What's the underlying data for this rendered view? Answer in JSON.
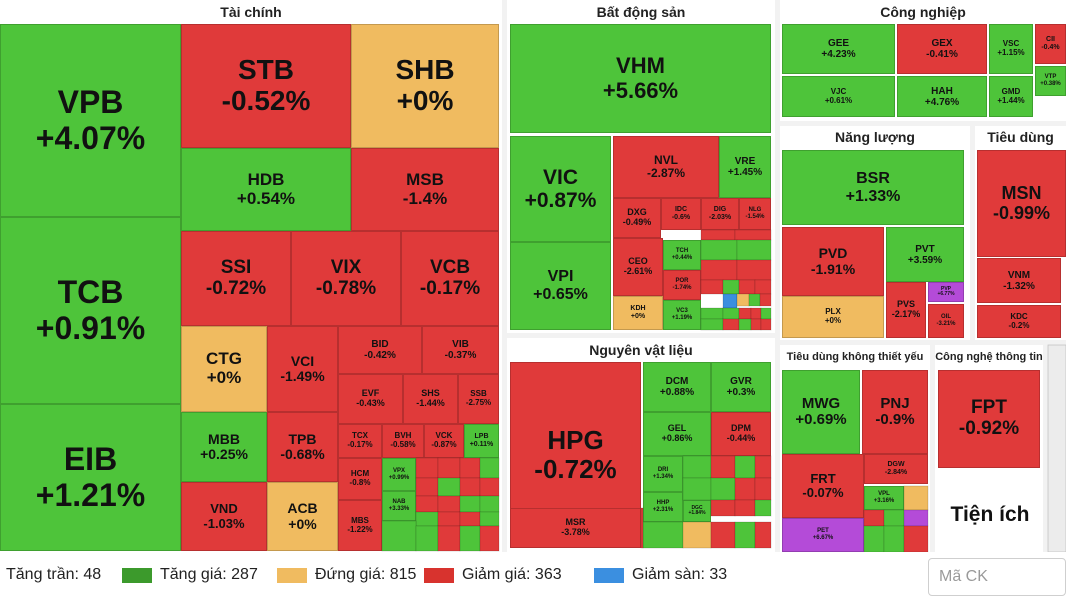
{
  "colors": {
    "up": "#4ec43a",
    "down": "#e03a3a",
    "ref": "#f0bb60",
    "floor": "#3b8fe0",
    "ceiling": "#b44bd8",
    "neutral": "#ffffff"
  },
  "chart_data": {
    "type": "treemap",
    "sectors": [
      {
        "key": "tai_chinh",
        "name": "Tài chính"
      },
      {
        "key": "bds",
        "name": "Bất động sản"
      },
      {
        "key": "cong_nghiep",
        "name": "Công nghiệp"
      },
      {
        "key": "nang_luong",
        "name": "Năng lượng"
      },
      {
        "key": "tieu_dung",
        "name": "Tiêu dùng"
      },
      {
        "key": "nvl",
        "name": "Nguyên vật liệu"
      },
      {
        "key": "tdktty",
        "name": "Tiêu dùng không thiết yếu"
      },
      {
        "key": "cntt",
        "name": "Công nghệ thông tin"
      }
    ],
    "tiles": [
      {
        "sym": "VPB",
        "chg": "+4.07%",
        "change": 4.07,
        "sector": "tai_chinh"
      },
      {
        "sym": "TCB",
        "chg": "+0.91%",
        "change": 0.91,
        "sector": "tai_chinh"
      },
      {
        "sym": "EIB",
        "chg": "+1.21%",
        "change": 1.21,
        "sector": "tai_chinh"
      },
      {
        "sym": "STB",
        "chg": "-0.52%",
        "change": -0.52,
        "sector": "tai_chinh"
      },
      {
        "sym": "SHB",
        "chg": "+0%",
        "change": 0,
        "sector": "tai_chinh"
      },
      {
        "sym": "HDB",
        "chg": "+0.54%",
        "change": 0.54,
        "sector": "tai_chinh"
      },
      {
        "sym": "MSB",
        "chg": "-1.4%",
        "change": -1.4,
        "sector": "tai_chinh"
      },
      {
        "sym": "SSI",
        "chg": "-0.72%",
        "change": -0.72,
        "sector": "tai_chinh"
      },
      {
        "sym": "VIX",
        "chg": "-0.78%",
        "change": -0.78,
        "sector": "tai_chinh"
      },
      {
        "sym": "VCB",
        "chg": "-0.17%",
        "change": -0.17,
        "sector": "tai_chinh"
      },
      {
        "sym": "CTG",
        "chg": "+0%",
        "change": 0,
        "sector": "tai_chinh"
      },
      {
        "sym": "VCI",
        "chg": "-1.49%",
        "change": -1.49,
        "sector": "tai_chinh"
      },
      {
        "sym": "BID",
        "chg": "-0.42%",
        "change": -0.42,
        "sector": "tai_chinh"
      },
      {
        "sym": "VIB",
        "chg": "-0.37%",
        "change": -0.37,
        "sector": "tai_chinh"
      },
      {
        "sym": "EVF",
        "chg": "-0.43%",
        "change": -0.43,
        "sector": "tai_chinh"
      },
      {
        "sym": "SHS",
        "chg": "-1.44%",
        "change": -1.44,
        "sector": "tai_chinh"
      },
      {
        "sym": "SSB",
        "chg": "-2.75%",
        "change": -2.75,
        "sector": "tai_chinh"
      },
      {
        "sym": "MBB",
        "chg": "+0.25%",
        "change": 0.25,
        "sector": "tai_chinh"
      },
      {
        "sym": "TPB",
        "chg": "-0.68%",
        "change": -0.68,
        "sector": "tai_chinh"
      },
      {
        "sym": "TCX",
        "chg": "-0.17%",
        "change": -0.17,
        "sector": "tai_chinh"
      },
      {
        "sym": "BVH",
        "chg": "-0.58%",
        "change": -0.58,
        "sector": "tai_chinh"
      },
      {
        "sym": "VCK",
        "chg": "-0.87%",
        "change": -0.87,
        "sector": "tai_chinh"
      },
      {
        "sym": "LPB",
        "chg": "+0.11%",
        "change": 0.11,
        "sector": "tai_chinh"
      },
      {
        "sym": "HCM",
        "chg": "-0.8%",
        "change": -0.8,
        "sector": "tai_chinh"
      },
      {
        "sym": "VPX",
        "chg": "+0.99%",
        "change": 0.99,
        "sector": "tai_chinh"
      },
      {
        "sym": "NAB",
        "chg": "+3.33%",
        "change": 3.33,
        "sector": "tai_chinh"
      },
      {
        "sym": "VND",
        "chg": "-1.03%",
        "change": -1.03,
        "sector": "tai_chinh"
      },
      {
        "sym": "ACB",
        "chg": "+0%",
        "change": 0,
        "sector": "tai_chinh"
      },
      {
        "sym": "MBS",
        "chg": "-1.22%",
        "change": -1.22,
        "sector": "tai_chinh"
      },
      {
        "sym": "VHM",
        "chg": "+5.66%",
        "change": 5.66,
        "sector": "bds"
      },
      {
        "sym": "VIC",
        "chg": "+0.87%",
        "change": 0.87,
        "sector": "bds"
      },
      {
        "sym": "NVL",
        "chg": "-2.87%",
        "change": -2.87,
        "sector": "bds"
      },
      {
        "sym": "VRE",
        "chg": "+1.45%",
        "change": 1.45,
        "sector": "bds"
      },
      {
        "sym": "DXG",
        "chg": "-0.49%",
        "change": -0.49,
        "sector": "bds"
      },
      {
        "sym": "IDC",
        "chg": "-0.6%",
        "change": -0.6,
        "sector": "bds"
      },
      {
        "sym": "DIG",
        "chg": "-2.03%",
        "change": -2.03,
        "sector": "bds"
      },
      {
        "sym": "NLG",
        "chg": "-1.54%",
        "change": -1.54,
        "sector": "bds"
      },
      {
        "sym": "VPI",
        "chg": "+0.65%",
        "change": 0.65,
        "sector": "bds"
      },
      {
        "sym": "CEO",
        "chg": "-2.61%",
        "change": -2.61,
        "sector": "bds"
      },
      {
        "sym": "TCH",
        "chg": "+0.44%",
        "change": 0.44,
        "sector": "bds"
      },
      {
        "sym": "POR",
        "chg": "-1.74%",
        "change": -1.74,
        "sector": "bds"
      },
      {
        "sym": "KDH",
        "chg": "+0%",
        "change": 0,
        "sector": "bds"
      },
      {
        "sym": "VC3",
        "chg": "+1.19%",
        "change": 1.19,
        "sector": "bds"
      },
      {
        "sym": "GEE",
        "chg": "+4.23%",
        "change": 4.23,
        "sector": "cong_nghiep"
      },
      {
        "sym": "GEX",
        "chg": "-0.41%",
        "change": -0.41,
        "sector": "cong_nghiep"
      },
      {
        "sym": "VSC",
        "chg": "+1.15%",
        "change": 1.15,
        "sector": "cong_nghiep"
      },
      {
        "sym": "CII",
        "chg": "-0.4%",
        "change": -0.4,
        "sector": "cong_nghiep"
      },
      {
        "sym": "VJC",
        "chg": "+0.61%",
        "change": 0.61,
        "sector": "cong_nghiep"
      },
      {
        "sym": "HAH",
        "chg": "+4.76%",
        "change": 4.76,
        "sector": "cong_nghiep"
      },
      {
        "sym": "GMD",
        "chg": "+1.44%",
        "change": 1.44,
        "sector": "cong_nghiep"
      },
      {
        "sym": "VTP",
        "chg": "+0.38%",
        "change": 0.38,
        "sector": "cong_nghiep"
      },
      {
        "sym": "BSR",
        "chg": "+1.33%",
        "change": 1.33,
        "sector": "nang_luong"
      },
      {
        "sym": "PVD",
        "chg": "-1.91%",
        "change": -1.91,
        "sector": "nang_luong"
      },
      {
        "sym": "PVT",
        "chg": "+3.59%",
        "change": 3.59,
        "sector": "nang_luong"
      },
      {
        "sym": "PVP",
        "chg": "+6.77%",
        "change": 6.77,
        "sector": "nang_luong"
      },
      {
        "sym": "PLX",
        "chg": "+0%",
        "change": 0,
        "sector": "nang_luong"
      },
      {
        "sym": "PVS",
        "chg": "-2.17%",
        "change": -2.17,
        "sector": "nang_luong"
      },
      {
        "sym": "OIL",
        "chg": "-3.21%",
        "change": -3.21,
        "sector": "nang_luong"
      },
      {
        "sym": "MSN",
        "chg": "-0.99%",
        "change": -0.99,
        "sector": "tieu_dung"
      },
      {
        "sym": "VNM",
        "chg": "-1.32%",
        "change": -1.32,
        "sector": "tieu_dung"
      },
      {
        "sym": "KDC",
        "chg": "-0.2%",
        "change": -0.2,
        "sector": "tieu_dung"
      },
      {
        "sym": "HPG",
        "chg": "-0.72%",
        "change": -0.72,
        "sector": "nvl"
      },
      {
        "sym": "DCM",
        "chg": "+0.88%",
        "change": 0.88,
        "sector": "nvl"
      },
      {
        "sym": "GVR",
        "chg": "+0.3%",
        "change": 0.3,
        "sector": "nvl"
      },
      {
        "sym": "GEL",
        "chg": "+0.86%",
        "change": 0.86,
        "sector": "nvl"
      },
      {
        "sym": "DPM",
        "chg": "-0.44%",
        "change": -0.44,
        "sector": "nvl"
      },
      {
        "sym": "DRI",
        "chg": "+1.34%",
        "change": 1.34,
        "sector": "nvl"
      },
      {
        "sym": "HHP",
        "chg": "+2.31%",
        "change": 2.31,
        "sector": "nvl"
      },
      {
        "sym": "DGC",
        "chg": "+1.84%",
        "change": 1.84,
        "sector": "nvl"
      },
      {
        "sym": "MSR",
        "chg": "-3.78%",
        "change": -3.78,
        "sector": "nvl"
      },
      {
        "sym": "MWG",
        "chg": "+0.69%",
        "change": 0.69,
        "sector": "tdktty"
      },
      {
        "sym": "PNJ",
        "chg": "-0.9%",
        "change": -0.9,
        "sector": "tdktty"
      },
      {
        "sym": "FRT",
        "chg": "-0.07%",
        "change": -0.07,
        "sector": "tdktty"
      },
      {
        "sym": "DGW",
        "chg": "-2.84%",
        "change": -2.84,
        "sector": "tdktty"
      },
      {
        "sym": "VPL",
        "chg": "+3.16%",
        "change": 3.16,
        "sector": "tdktty"
      },
      {
        "sym": "PET",
        "chg": "+6.67%",
        "change": 6.67,
        "sector": "tdktty"
      },
      {
        "sym": "FPT",
        "chg": "-0.92%",
        "change": -0.92,
        "sector": "cntt"
      },
      {
        "sym": "Tiện ích",
        "chg": "",
        "change": null,
        "sector": "tien_ich"
      }
    ],
    "legend": [
      {
        "label": "Tăng trần: 48",
        "color": "#b44bd8",
        "show_swatch": false
      },
      {
        "label": "Tăng giá: 287",
        "color": "#3c9a2c",
        "show_swatch": true
      },
      {
        "label": "Đứng giá: 815",
        "color": "#f0bb60",
        "show_swatch": true
      },
      {
        "label": "Giảm giá: 363",
        "color": "#d8332e",
        "show_swatch": true
      },
      {
        "label": "Giảm sàn: 33",
        "color": "#3b8fe0",
        "show_swatch": true
      }
    ]
  },
  "search": {
    "placeholder": "Mã CK"
  }
}
